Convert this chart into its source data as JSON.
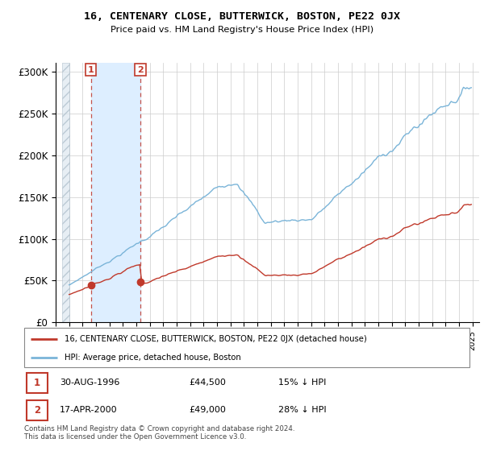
{
  "title": "16, CENTENARY CLOSE, BUTTERWICK, BOSTON, PE22 0JX",
  "subtitle": "Price paid vs. HM Land Registry's House Price Index (HPI)",
  "ylabel_ticks": [
    "£0",
    "£50K",
    "£100K",
    "£150K",
    "£200K",
    "£250K",
    "£300K"
  ],
  "ytick_values": [
    0,
    50000,
    100000,
    150000,
    200000,
    250000,
    300000
  ],
  "ylim": [
    0,
    310000
  ],
  "xlim_start": 1994.5,
  "xlim_end": 2025.5,
  "hpi_color": "#7ab4d8",
  "price_color": "#c0392b",
  "sale1_year": 1996,
  "sale1_month": 8,
  "sale1_price": 44500,
  "sale2_year": 2000,
  "sale2_month": 4,
  "sale2_price": 49000,
  "legend_line1": "16, CENTENARY CLOSE, BUTTERWICK, BOSTON, PE22 0JX (detached house)",
  "legend_line2": "HPI: Average price, detached house, Boston",
  "table_row1": [
    "1",
    "30-AUG-1996",
    "£44,500",
    "15% ↓ HPI"
  ],
  "table_row2": [
    "2",
    "17-APR-2000",
    "£49,000",
    "28% ↓ HPI"
  ],
  "footnote": "Contains HM Land Registry data © Crown copyright and database right 2024.\nThis data is licensed under the Open Government Licence v3.0.",
  "shade_color": "#ddeeff",
  "grid_color": "#cccccc",
  "hatch_color": "#d0d8e0"
}
